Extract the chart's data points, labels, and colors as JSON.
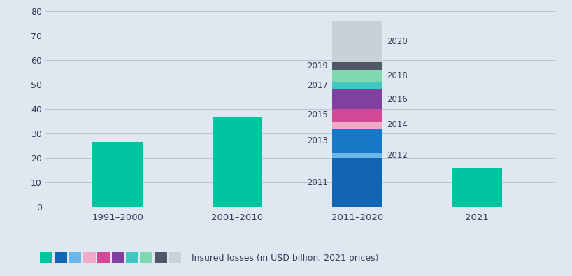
{
  "background_color": "#dde8f0",
  "bar_color_solid": "#00c4a0",
  "categories": [
    "1991–2000",
    "2001–2010",
    "2011–2020",
    "2021"
  ],
  "simple_values": [
    26.5,
    37.0,
    null,
    16.0
  ],
  "stacked_years": [
    "2011",
    "2012",
    "2013",
    "2014",
    "2015",
    "2016",
    "2017",
    "2018",
    "2019",
    "2020"
  ],
  "stacked_values": [
    20.0,
    2.0,
    10.0,
    3.0,
    5.0,
    8.0,
    3.0,
    5.0,
    3.0,
    17.0
  ],
  "stacked_colors": [
    "#1464b4",
    "#6bb8e8",
    "#1878c8",
    "#f0aac8",
    "#d44898",
    "#8040a0",
    "#40c8c0",
    "#80d8b0",
    "#505868",
    "#c8d0d8"
  ],
  "ylim": [
    0,
    80
  ],
  "yticks": [
    0,
    10,
    20,
    30,
    40,
    50,
    60,
    70,
    80
  ],
  "legend_colors": [
    "#00c4a0",
    "#1464b4",
    "#6bb8e8",
    "#f0aac8",
    "#d44898",
    "#8040a0",
    "#40c8c0",
    "#80d8b0",
    "#505868",
    "#c8d0d8"
  ],
  "legend_text": "Insured losses (in USD billion, 2021 prices)",
  "bar_width": 0.42
}
